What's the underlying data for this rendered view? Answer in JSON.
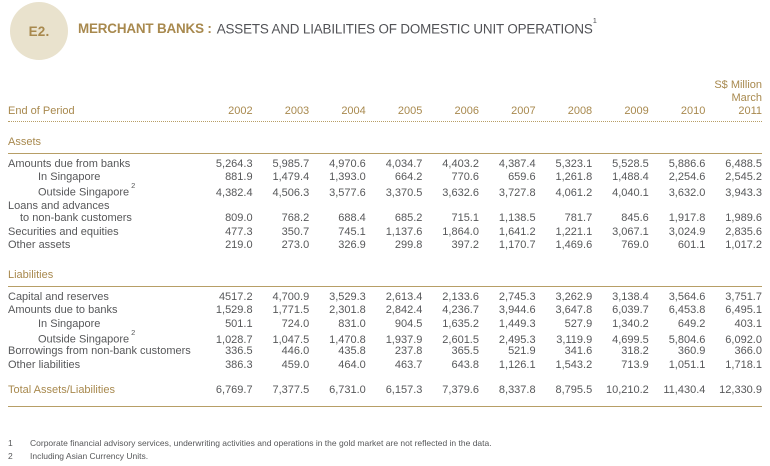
{
  "header": {
    "badge": "E2.",
    "title_bold": "MERCHANT BANKS :",
    "title_rest": "ASSETS AND LIABILITIES OF DOMESTIC UNIT OPERATIONS",
    "title_footnote_ref": "1"
  },
  "table": {
    "unit_label": "S$ Million",
    "period_label": "March",
    "row_header": "End of Period",
    "years": [
      "2002",
      "2003",
      "2004",
      "2005",
      "2006",
      "2007",
      "2008",
      "2009",
      "2010",
      "2011"
    ],
    "sections": [
      {
        "heading": "Assets",
        "rows": [
          {
            "label": "Amounts due from banks",
            "indent": 0,
            "values": [
              "5,264.3",
              "5,985.7",
              "4,970.6",
              "4,034.7",
              "4,403.2",
              "4,387.4",
              "5,323.1",
              "5,528.5",
              "5,886.6",
              "6,488.5"
            ]
          },
          {
            "label": "In Singapore",
            "indent": 1,
            "values": [
              "881.9",
              "1,479.4",
              "1,393.0",
              "664.2",
              "770.6",
              "659.6",
              "1,261.8",
              "1,488.4",
              "2,254.6",
              "2,545.2"
            ]
          },
          {
            "label": "Outside Singapore",
            "indent": 1,
            "footnote_ref": "2",
            "values": [
              "4,382.4",
              "4,506.3",
              "3,577.6",
              "3,370.5",
              "3,632.6",
              "3,727.8",
              "4,061.2",
              "4,040.1",
              "3,632.0",
              "3,943.3"
            ]
          },
          {
            "label": "Loans and advances",
            "label2": "to non-bank customers",
            "indent": 0,
            "values": [
              "809.0",
              "768.2",
              "688.4",
              "685.2",
              "715.1",
              "1,138.5",
              "781.7",
              "845.6",
              "1,917.8",
              "1,989.6"
            ]
          },
          {
            "label": "Securities and equities",
            "indent": 0,
            "values": [
              "477.3",
              "350.7",
              "745.1",
              "1,137.6",
              "1,864.0",
              "1,641.2",
              "1,221.1",
              "3,067.1",
              "3,024.9",
              "2,835.6"
            ]
          },
          {
            "label": "Other assets",
            "indent": 0,
            "values": [
              "219.0",
              "273.0",
              "326.9",
              "299.8",
              "397.2",
              "1,170.7",
              "1,469.6",
              "769.0",
              "601.1",
              "1,017.2"
            ]
          }
        ]
      },
      {
        "heading": "Liabilities",
        "rows": [
          {
            "label": "Capital and reserves",
            "indent": 0,
            "values": [
              "4517.2",
              "4,700.9",
              "3,529.3",
              "2,613.4",
              "2,133.6",
              "2,745.3",
              "3,262.9",
              "3,138.4",
              "3,564.6",
              "3,751.7"
            ]
          },
          {
            "label": "Amounts due to banks",
            "indent": 0,
            "values": [
              "1,529.8",
              "1,771.5",
              "2,301.8",
              "2,842.4",
              "4,236.7",
              "3,944.6",
              "3,647.8",
              "6,039.7",
              "6,453.8",
              "6,495.1"
            ]
          },
          {
            "label": "In Singapore",
            "indent": 1,
            "values": [
              "501.1",
              "724.0",
              "831.0",
              "904.5",
              "1,635.2",
              "1,449.3",
              "527.9",
              "1,340.2",
              "649.2",
              "403.1"
            ]
          },
          {
            "label": "Outside Singapore",
            "indent": 1,
            "footnote_ref": "2",
            "values": [
              "1,028.7",
              "1,047.5",
              "1,470.8",
              "1,937.9",
              "2,601.5",
              "2,495.3",
              "3,119.9",
              "4,699.5",
              "5,804.6",
              "6,092.0"
            ]
          },
          {
            "label": "Borrowings from non-bank customers",
            "indent": 0,
            "values": [
              "336.5",
              "446.0",
              "435.8",
              "237.8",
              "365.5",
              "521.9",
              "341.6",
              "318.2",
              "360.9",
              "366.0"
            ]
          },
          {
            "label": "Other liabilities",
            "indent": 0,
            "values": [
              "386.3",
              "459.0",
              "464.0",
              "463.7",
              "643.8",
              "1,126.1",
              "1,543.2",
              "713.9",
              "1,051.1",
              "1,718.1"
            ]
          }
        ]
      }
    ],
    "total_row": {
      "label": "Total Assets/Liabilities",
      "values": [
        "6,769.7",
        "7,377.5",
        "6,731.0",
        "6,157.3",
        "7,379.6",
        "8,337.8",
        "8,795.5",
        "10,210.2",
        "11,430.4",
        "12,330.9"
      ]
    }
  },
  "footnotes": [
    {
      "ref": "1",
      "text": "Corporate financial advisory services, underwriting activities and operations in the gold market are not reflected in the data."
    },
    {
      "ref": "2",
      "text": "Including Asian Currency Units."
    }
  ],
  "colors": {
    "gold": "#a8894e",
    "line": "#b79e66",
    "badge_fill": "#e9e2cd",
    "text": "#57585a",
    "title_text": "#515256"
  }
}
